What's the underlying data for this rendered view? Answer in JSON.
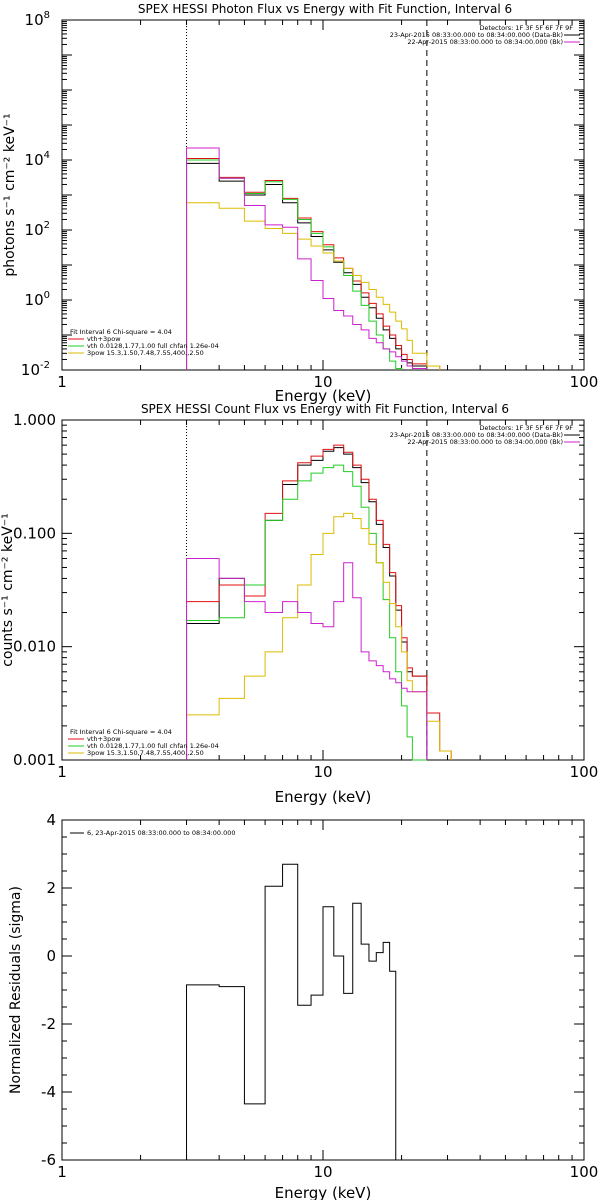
{
  "chart_data": [
    {
      "type": "line",
      "title": "SPEX HESSI Photon Flux vs Energy with Fit Function, Interval 6",
      "xlabel": "Energy (keV)",
      "ylabel": "photons s⁻¹ cm⁻² keV⁻¹",
      "xscale": "log",
      "yscale": "log",
      "xlim": [
        1,
        100
      ],
      "ylim": [
        0.01,
        100000000
      ],
      "xticks": [
        "1",
        "10",
        "100"
      ],
      "ytick_labels": [
        {
          "value": 0.01,
          "base": "10",
          "exp": "-2"
        },
        {
          "value": 1,
          "base": "10",
          "exp": "0"
        },
        {
          "value": 100,
          "base": "10",
          "exp": "2"
        },
        {
          "value": 10000,
          "base": "10",
          "exp": "4"
        },
        {
          "value": 100000000,
          "base": "10",
          "exp": "8"
        }
      ],
      "vlines": [
        {
          "x": 3.0,
          "style": "dotted",
          "color": "#000000"
        },
        {
          "x": 25.0,
          "style": "dashed",
          "color": "#000000"
        }
      ],
      "legend_right": {
        "title": "Detectors: 1F 3F 5F 6F 7F 9F",
        "entries": [
          {
            "label": "23-Apr-2015 08:33:00.000 to 08:34:00.000 (Data-Bk)",
            "color": "#000000"
          },
          {
            "label": "22-Apr-2015 08:33:00.000 to 08:34:00.000 (Bk)",
            "color": "#cc22cc"
          }
        ]
      },
      "legend_left": {
        "title": "Fit Interval 6   Chi-square = 4.04",
        "entries": [
          {
            "label": "vth+3pow",
            "color": "#e01010"
          },
          {
            "label": "vth 0.0128,1.77,1.00  full chfan 1.26e-04",
            "color": "#22cc22"
          },
          {
            "label": "3pow 15.3,1.50,7.48,7.55,400.,2.50",
            "color": "#ddbb00"
          }
        ]
      },
      "bin_edges": [
        3.0,
        4.0,
        5.0,
        6.0,
        7.0,
        8.0,
        9.0,
        10.0,
        11.0,
        12.0,
        13.0,
        14.0,
        15.0,
        16.0,
        17.0,
        18.0,
        19.0,
        20.0,
        21.0,
        22.0,
        25.0,
        28.0,
        31.0
      ],
      "series": [
        {
          "color": "#000000",
          "values": [
            8000,
            2500,
            1000,
            2000,
            600,
            160,
            65,
            27,
            12,
            6,
            2.8,
            1.2,
            0.6,
            0.3,
            0.14,
            0.08,
            0.04,
            0.02,
            0.016,
            0.013,
            null,
            null
          ]
        },
        {
          "color": "#e01010",
          "values": [
            11000,
            3200,
            1200,
            2600,
            800,
            220,
            90,
            38,
            16,
            8,
            3.5,
            1.6,
            0.8,
            0.4,
            0.18,
            0.1,
            0.05,
            0.028,
            0.02,
            0.015,
            0.013,
            null
          ]
        },
        {
          "color": "#22cc22",
          "values": [
            10000,
            3000,
            1100,
            2400,
            750,
            200,
            80,
            33,
            13,
            5,
            1.8,
            0.7,
            0.25,
            0.1,
            0.04,
            0.018,
            0.011,
            null,
            null,
            null,
            null,
            null
          ]
        },
        {
          "color": "#ddbb00",
          "values": [
            600,
            420,
            180,
            110,
            80,
            55,
            35,
            22,
            13,
            8,
            5,
            3.2,
            2,
            1.2,
            0.75,
            0.45,
            0.25,
            0.15,
            0.07,
            0.03,
            0.013,
            null
          ]
        },
        {
          "color": "#cc22cc",
          "values": [
            22000,
            3000,
            500,
            140,
            120,
            15,
            3.6,
            1.1,
            0.5,
            0.35,
            0.2,
            0.14,
            0.08,
            0.06,
            0.04,
            0.033,
            0.024,
            0.018,
            0.013,
            0.011,
            null,
            null
          ]
        }
      ]
    },
    {
      "type": "line",
      "title": "SPEX HESSI Count Flux vs Energy with Fit Function, Interval 6",
      "xlabel": "Energy (keV)",
      "ylabel": "counts s⁻¹ cm⁻² keV⁻¹",
      "xscale": "log",
      "yscale": "log",
      "xlim": [
        1,
        100
      ],
      "ylim": [
        0.001,
        1.0
      ],
      "xticks": [
        "1",
        "10",
        "100"
      ],
      "yticks": [
        "0.001",
        "0.010",
        "0.100",
        "1.000"
      ],
      "vlines": [
        {
          "x": 3.0,
          "style": "dotted",
          "color": "#000000"
        },
        {
          "x": 25.0,
          "style": "dashed",
          "color": "#000000"
        }
      ],
      "legend_right": {
        "title": "Detectors: 1F 3F 5F 6F 7F 9F",
        "entries": [
          {
            "label": "23-Apr-2015 08:33:00.000 to 08:34:00.000 (Data-Bk)",
            "color": "#000000"
          },
          {
            "label": "22-Apr-2015 08:33:00.000 to 08:34:00.000 (Bk)",
            "color": "#cc22cc"
          }
        ]
      },
      "legend_left": {
        "title": "Fit Interval 6   Chi-square = 4.04",
        "entries": [
          {
            "label": "vth+3pow",
            "color": "#e01010"
          },
          {
            "label": "vth 0.0128,1.77,1.00  full chfan 1.26e-04",
            "color": "#22cc22"
          },
          {
            "label": "3pow 15.3,1.50,7.48,7.55,400.,2.50",
            "color": "#ddbb00"
          }
        ]
      },
      "bin_edges": [
        3.0,
        4.0,
        5.0,
        6.0,
        7.0,
        8.0,
        9.0,
        10.0,
        11.0,
        12.0,
        13.0,
        14.0,
        15.0,
        16.0,
        17.0,
        18.0,
        19.0,
        20.0,
        21.0,
        22.0,
        25.0,
        28.0,
        31.0
      ],
      "series": [
        {
          "color": "#000000",
          "values": [
            0.016,
            0.04,
            0.035,
            0.13,
            0.27,
            0.4,
            0.44,
            0.53,
            0.57,
            0.5,
            0.38,
            0.28,
            0.19,
            0.12,
            0.075,
            0.042,
            0.021,
            0.011,
            0.006,
            0.0055,
            null,
            null
          ]
        },
        {
          "color": "#e01010",
          "values": [
            0.025,
            0.035,
            0.028,
            0.15,
            0.29,
            0.42,
            0.48,
            0.55,
            0.6,
            0.52,
            0.4,
            0.3,
            0.2,
            0.13,
            0.08,
            0.045,
            0.023,
            0.012,
            0.0065,
            0.0055,
            0.0026,
            0.0012
          ]
        },
        {
          "color": "#22cc22",
          "values": [
            0.017,
            0.018,
            0.035,
            0.13,
            0.2,
            0.29,
            0.34,
            0.38,
            0.4,
            0.35,
            0.26,
            0.17,
            0.1,
            0.055,
            0.026,
            0.012,
            0.006,
            0.003,
            0.0016,
            0.001,
            null,
            null
          ]
        },
        {
          "color": "#ddbb00",
          "values": [
            0.0025,
            0.0035,
            0.0055,
            0.009,
            0.018,
            0.035,
            0.065,
            0.1,
            0.14,
            0.15,
            0.135,
            0.11,
            0.08,
            0.055,
            0.037,
            0.024,
            0.015,
            0.009,
            0.005,
            0.004,
            0.0022,
            0.0012
          ]
        },
        {
          "color": "#cc22cc",
          "values": [
            0.06,
            0.04,
            0.025,
            0.02,
            0.025,
            0.02,
            0.016,
            0.015,
            0.025,
            0.055,
            0.027,
            0.009,
            0.0075,
            0.0068,
            0.006,
            0.0052,
            0.0048,
            0.0043,
            0.004,
            0.004,
            null,
            null
          ]
        }
      ]
    },
    {
      "type": "line",
      "title": "",
      "xlabel": "Energy (keV)",
      "ylabel": "Normalized Residuals (sigma)",
      "xscale": "log",
      "yscale": "linear",
      "xlim": [
        1,
        100
      ],
      "ylim": [
        -6,
        4
      ],
      "xticks": [
        "1",
        "10",
        "100"
      ],
      "yticks": [
        "-6",
        "-4",
        "-2",
        "0",
        "2",
        "4"
      ],
      "legend": {
        "entries": [
          {
            "label": "6, 23-Apr-2015 08:33:00.000 to 08:34:00.000",
            "color": "#000000"
          }
        ]
      },
      "bin_edges": [
        3.0,
        4.0,
        5.0,
        6.0,
        7.0,
        8.0,
        9.0,
        10.0,
        11.0,
        12.0,
        13.0,
        14.0,
        15.0,
        16.0,
        17.0,
        18.0,
        19.0,
        20.0,
        21.0,
        22.0,
        25.0
      ],
      "series": [
        {
          "color": "#000000",
          "values": [
            -0.85,
            -0.9,
            -4.35,
            2.05,
            2.7,
            -1.45,
            -1.15,
            1.45,
            0.0,
            -1.1,
            1.55,
            0.35,
            -0.15,
            0.1,
            0.4,
            -0.45,
            null,
            null,
            null,
            null
          ]
        }
      ]
    }
  ]
}
